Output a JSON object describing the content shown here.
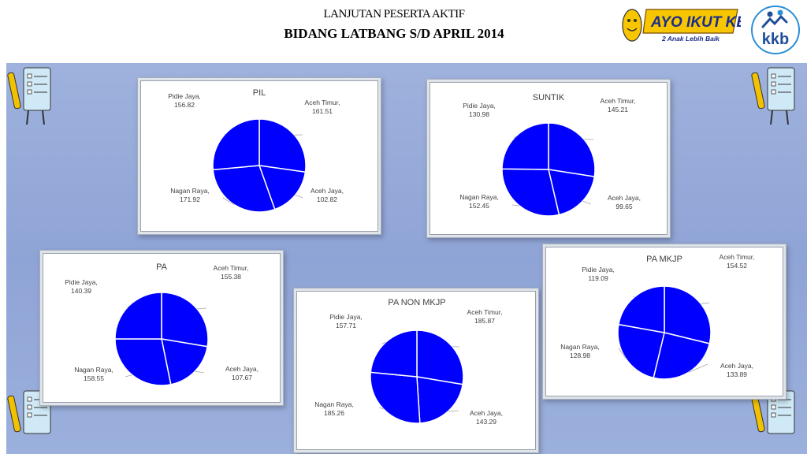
{
  "header": {
    "line1": "LANJUTAN PESERTA  AKTIF",
    "line2": "BIDANG LATBANG S/D  APRIL 2014"
  },
  "logos": {
    "ayo_text": "AYO IKUT KB",
    "ayo_sub": "2 Anak Lebih Baik",
    "kkb_text": "kkb"
  },
  "colors": {
    "slice": "#0000ff",
    "slice_border": "#ffffff",
    "band": "#9aaedb"
  },
  "icons": [
    "checklist-clipboard-icon"
  ],
  "chart_data": [
    {
      "type": "pie",
      "title": "PIL",
      "labels": [
        "Aceh Timur,",
        "Aceh Jaya,",
        "Nagan Raya,",
        "Pidie Jaya,"
      ],
      "values": [
        161.51,
        102.82,
        171.92,
        156.82
      ],
      "value_labels": [
        "161.51",
        "102.82",
        "171.92",
        "156.82"
      ]
    },
    {
      "type": "pie",
      "title": "SUNTIK",
      "labels": [
        "Aceh Timur,",
        "Aceh Jaya,",
        "Nagan Raya,",
        "Pidie Jaya,"
      ],
      "values": [
        145.21,
        99.65,
        152.45,
        130.98
      ],
      "value_labels": [
        "145.21",
        "99.65",
        "152.45",
        "130.98"
      ]
    },
    {
      "type": "pie",
      "title": "PA",
      "labels": [
        "Aceh Timur,",
        "Aceh Jaya,",
        "Nagan Raya,",
        "Pidie Jaya,"
      ],
      "values": [
        155.38,
        107.67,
        158.55,
        140.39
      ],
      "value_labels": [
        "155.38",
        "107.67",
        "158.55",
        "140.39"
      ]
    },
    {
      "type": "pie",
      "title": "PA NON MKJP",
      "labels": [
        "Aceh Timur,",
        "Aceh Jaya,",
        "Nagan Raya,",
        "Pidie Jaya,"
      ],
      "values": [
        185.87,
        143.29,
        185.26,
        157.71
      ],
      "value_labels": [
        "185.87",
        "143.29",
        "185.26",
        "157.71"
      ]
    },
    {
      "type": "pie",
      "title": "PA  MKJP",
      "labels": [
        "Aceh Timur,",
        "Aceh Jaya,",
        "Nagan Raya,",
        "Pidie Jaya,"
      ],
      "values": [
        154.52,
        133.89,
        128.98,
        119.09
      ],
      "value_labels": [
        "154.52",
        "133.89",
        "128.98",
        "119.09"
      ]
    }
  ]
}
